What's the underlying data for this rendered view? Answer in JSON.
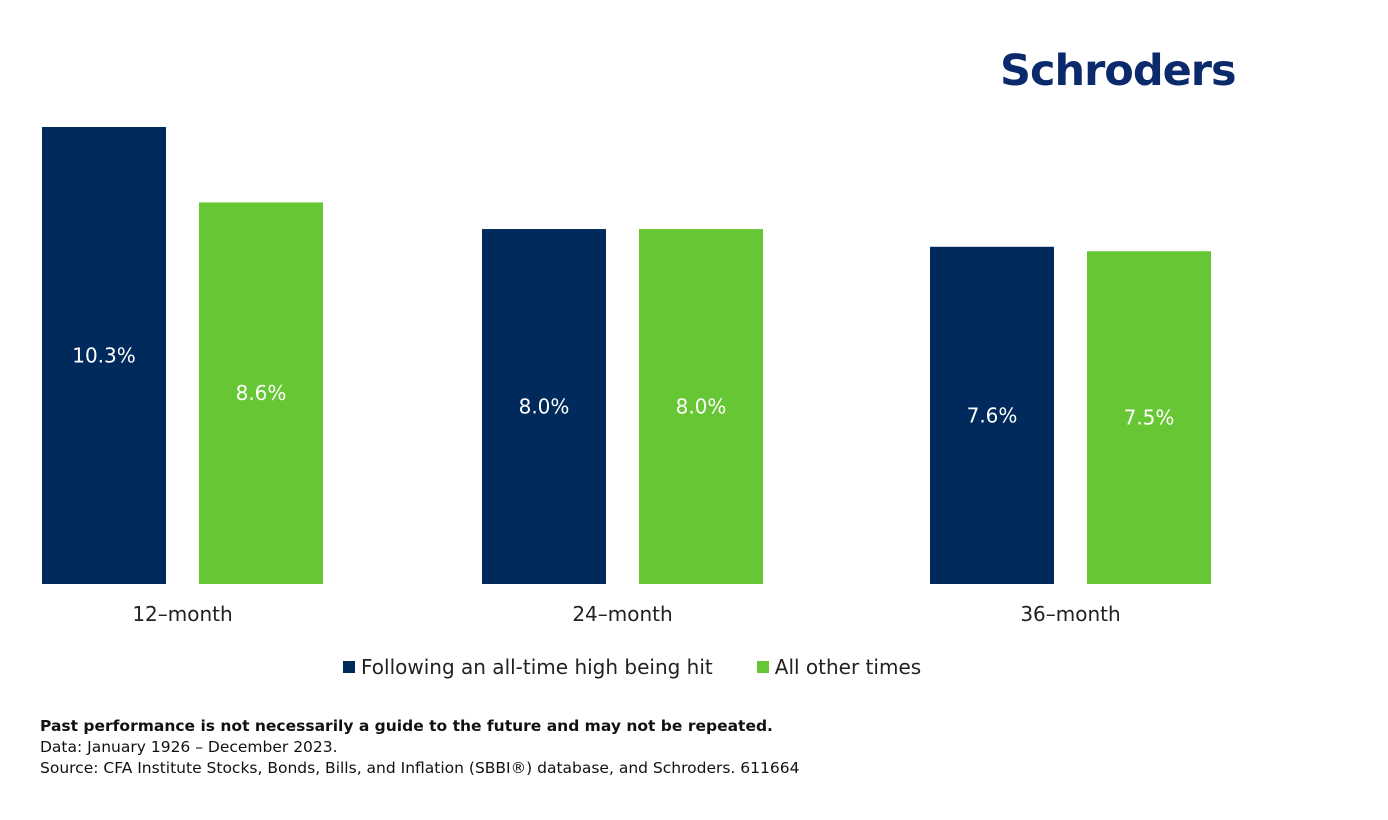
{
  "brand": {
    "logo_text": "Schroders"
  },
  "chart_data": {
    "type": "bar",
    "categories": [
      "12–month",
      "24–month",
      "36–month"
    ],
    "series": [
      {
        "name": "Following an all-time high being hit",
        "color": "#002a5c",
        "values": [
          10.3,
          8.0,
          7.6
        ],
        "labels": [
          "10.3%",
          "8.0%",
          "7.6%"
        ]
      },
      {
        "name": "All other times",
        "color": "#66c633",
        "values": [
          8.6,
          8.0,
          7.5
        ],
        "labels": [
          "8.6%",
          "8.0%",
          "7.5%"
        ]
      }
    ],
    "ylim": [
      0,
      10.3
    ],
    "grid": false,
    "legend_position": "bottom"
  },
  "footer": {
    "disclaimer": "Past performance is not necessarily a guide to the future and may not be repeated.",
    "data_note": "Data: January 1926 – December 2023.",
    "source": "Source: CFA Institute Stocks, Bonds, Bills, and Inflation (SBBI®) database, and Schroders. 611664"
  }
}
